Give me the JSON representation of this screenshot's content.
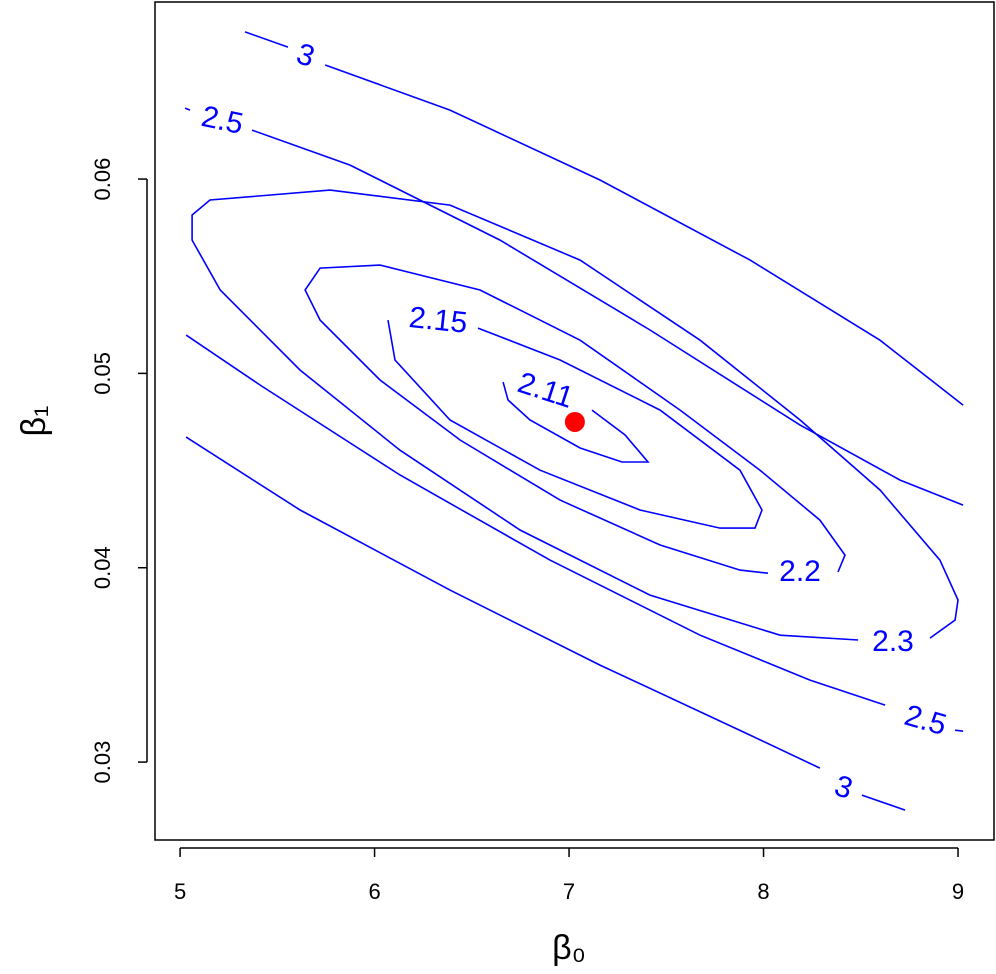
{
  "chart_data": {
    "type": "contour",
    "xlabel": "β₀",
    "ylabel": "β₁",
    "xlim": [
      4.871,
      9.185
    ],
    "ylim": [
      0.02599,
      0.06911
    ],
    "xticks": [
      5,
      6,
      7,
      8,
      9
    ],
    "yticks": [
      0.03,
      0.04,
      0.05,
      0.06
    ],
    "color": "#0000ff",
    "contours": [
      {
        "level": 3,
        "x": [
          5.334,
          5.555,
          null,
          5.746,
          6.388,
          7.159,
          7.931,
          8.599,
          9.026,
          null,
          5.031,
          5.617,
          6.388,
          7.159,
          7.931,
          8.29,
          null,
          8.506,
          8.728
        ],
        "y": [
          0.06757,
          0.06679,
          null,
          0.06587,
          0.06355,
          0.05995,
          0.05583,
          0.05171,
          0.04837,
          null,
          0.04672,
          0.04297,
          0.03885,
          0.03499,
          0.03139,
          0.02969,
          null,
          0.0283,
          0.02753
        ]
      },
      {
        "level": 2.5,
        "x": [
          5.026,
          5.051,
          null,
          5.37,
          5.874,
          6.645,
          7.416,
          8.188,
          8.702,
          9.026,
          null,
          5.031,
          5.411,
          6.131,
          6.902,
          7.674,
          8.239,
          8.625,
          null,
          8.985,
          9.026
        ],
        "y": [
          0.06365,
          0.06355,
          null,
          0.06252,
          0.06072,
          0.05686,
          0.05223,
          0.04734,
          0.04451,
          0.04322,
          null,
          0.05197,
          0.0494,
          0.04477,
          0.04039,
          0.03653,
          0.03422,
          0.03293,
          null,
          0.03164,
          0.03159
        ]
      },
      {
        "level": 2.3,
        "x": [
          8.856,
          8.985,
          9.0,
          8.907,
          8.599,
          8.188,
          7.674,
          7.057,
          6.388,
          5.771,
          5.154,
          5.062,
          5.062,
          5.206,
          5.617,
          6.131,
          6.748,
          7.416,
          8.085,
          8.486
        ],
        "y": [
          0.03638,
          0.03731,
          0.03834,
          0.04039,
          0.044,
          0.0476,
          0.05171,
          0.05583,
          0.05866,
          0.05943,
          0.05892,
          0.05815,
          0.05686,
          0.05429,
          0.05017,
          0.04605,
          0.04194,
          0.03859,
          0.03653,
          0.03628
        ]
      },
      {
        "level": 2.2,
        "x": [
          8.383,
          8.419,
          8.29,
          7.982,
          7.571,
          7.057,
          6.542,
          6.028,
          5.72,
          5.643,
          5.72,
          6.028,
          6.44,
          6.954,
          7.468,
          7.879,
          8.023
        ],
        "y": [
          0.03978,
          0.04065,
          0.04245,
          0.04502,
          0.04811,
          0.05171,
          0.05429,
          0.05557,
          0.05542,
          0.05429,
          0.05274,
          0.04966,
          0.04657,
          0.04348,
          0.04117,
          0.03988,
          0.03972
        ]
      },
      {
        "level": 2.15,
        "x": [
          6.532,
          6.954,
          7.468,
          7.879,
          7.992,
          7.956,
          7.776,
          7.365,
          6.851,
          6.388,
          6.105,
          6.069
        ],
        "y": [
          0.05233,
          0.05069,
          0.04811,
          0.04502,
          0.04297,
          0.04204,
          0.04204,
          0.04297,
          0.04502,
          0.0476,
          0.05069,
          0.05274
        ]
      },
      {
        "level": 2.11,
        "x": [
          7.118,
          7.288,
          7.406,
          7.272,
          7.057,
          6.799,
          6.686,
          6.661
        ],
        "y": [
          0.04811,
          0.04683,
          0.04544,
          0.04544,
          0.04616,
          0.0476,
          0.04863,
          0.04955
        ]
      }
    ],
    "point": {
      "x": 7.03,
      "y": 0.0475,
      "color": "#ff0000"
    }
  }
}
